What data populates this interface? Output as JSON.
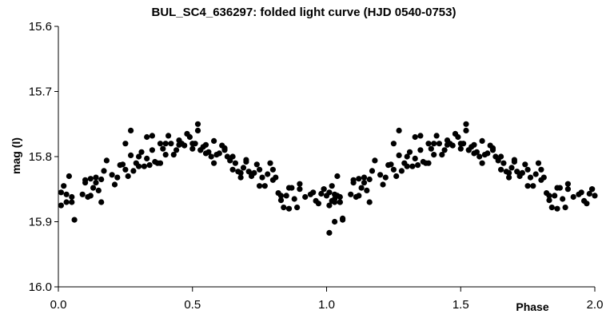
{
  "chart_data": {
    "type": "scatter",
    "title": "BUL_SC4_636297: folded light curve (HJD 0540-0753)",
    "xlabel": "Phase",
    "ylabel": "mag (I)",
    "xlim": [
      0.0,
      2.0
    ],
    "ylim": [
      15.6,
      16.0
    ],
    "y_inverted": true,
    "grid": false,
    "legend": "none",
    "x_ticks": [
      0.0,
      0.5,
      1.0,
      1.5,
      2.0
    ],
    "x_tick_labels": [
      "0.0",
      "0.5",
      "1.0",
      "1.5",
      "2.0"
    ],
    "y_ticks": [
      15.6,
      15.7,
      15.8,
      15.9,
      16.0
    ],
    "y_tick_labels": [
      "15.6",
      "15.7",
      "15.8",
      "15.9",
      "16.0"
    ],
    "marker_color": "#000000",
    "series": [
      {
        "x": [
          0.01,
          0.02,
          0.03,
          0.04,
          0.05,
          0.06,
          0.09,
          0.1,
          0.11,
          0.12,
          0.13,
          0.14,
          0.15,
          0.16,
          0.17,
          0.18,
          0.2,
          0.21,
          0.22,
          0.23,
          0.24,
          0.25,
          0.26,
          0.27,
          0.28,
          0.29,
          0.3,
          0.31,
          0.32,
          0.33,
          0.34,
          0.35,
          0.36,
          0.37,
          0.38,
          0.39,
          0.4,
          0.41,
          0.42,
          0.43,
          0.44,
          0.45,
          0.46,
          0.47,
          0.48,
          0.49,
          0.5,
          0.51,
          0.52,
          0.53,
          0.54,
          0.55,
          0.56,
          0.57,
          0.58,
          0.59,
          0.6,
          0.61,
          0.62,
          0.63,
          0.64,
          0.65,
          0.66,
          0.67,
          0.68,
          0.69,
          0.7,
          0.71,
          0.72,
          0.73,
          0.74,
          0.75,
          0.76,
          0.77,
          0.78,
          0.79,
          0.8,
          0.81,
          0.82,
          0.83,
          0.84,
          0.85,
          0.86,
          0.87,
          0.88,
          0.89,
          0.9,
          0.92,
          0.94,
          0.96,
          0.97,
          0.98,
          0.99,
          1.0,
          1.01,
          1.02,
          1.03,
          1.04,
          1.05,
          1.06,
          0.01,
          0.03,
          0.05,
          0.1,
          0.12,
          0.14,
          0.16,
          0.25,
          0.27,
          0.3,
          0.33,
          0.35,
          0.38,
          0.4,
          0.45,
          0.48,
          0.5,
          0.52,
          0.53,
          0.55,
          0.58,
          0.62,
          0.65,
          0.68,
          0.7,
          0.72,
          0.75,
          0.8,
          0.83,
          0.86,
          0.9,
          0.95,
          0.99,
          1.03
        ],
        "y": [
          15.855,
          15.845,
          15.858,
          15.83,
          15.862,
          15.897,
          15.858,
          15.836,
          15.862,
          15.834,
          15.848,
          15.832,
          15.852,
          15.835,
          15.822,
          15.806,
          15.828,
          15.843,
          15.832,
          15.813,
          15.812,
          15.82,
          15.83,
          15.798,
          15.822,
          15.81,
          15.8,
          15.793,
          15.815,
          15.803,
          15.813,
          15.768,
          15.808,
          15.81,
          15.78,
          15.788,
          15.797,
          15.768,
          15.78,
          15.797,
          15.79,
          15.775,
          15.78,
          15.783,
          15.765,
          15.77,
          15.78,
          15.78,
          15.76,
          15.79,
          15.785,
          15.782,
          15.793,
          15.8,
          15.776,
          15.797,
          15.795,
          15.783,
          15.787,
          15.8,
          15.806,
          15.8,
          15.81,
          15.823,
          15.832,
          15.817,
          15.805,
          15.823,
          15.827,
          15.825,
          15.812,
          15.845,
          15.832,
          15.845,
          15.827,
          15.81,
          15.836,
          15.832,
          15.856,
          15.867,
          15.878,
          15.86,
          15.848,
          15.848,
          15.865,
          15.878,
          15.842,
          15.862,
          15.858,
          15.868,
          15.872,
          15.857,
          15.85,
          15.86,
          15.917,
          15.868,
          15.865,
          15.86,
          15.87,
          15.895,
          15.875,
          15.87,
          15.87,
          15.84,
          15.86,
          15.84,
          15.87,
          15.78,
          15.76,
          15.815,
          15.77,
          15.79,
          15.81,
          15.78,
          15.782,
          15.765,
          15.788,
          15.75,
          15.79,
          15.795,
          15.81,
          15.79,
          15.82,
          15.825,
          15.808,
          15.83,
          15.82,
          15.82,
          15.86,
          15.88,
          15.85,
          15.855,
          15.85,
          15.9
        ]
      }
    ]
  }
}
